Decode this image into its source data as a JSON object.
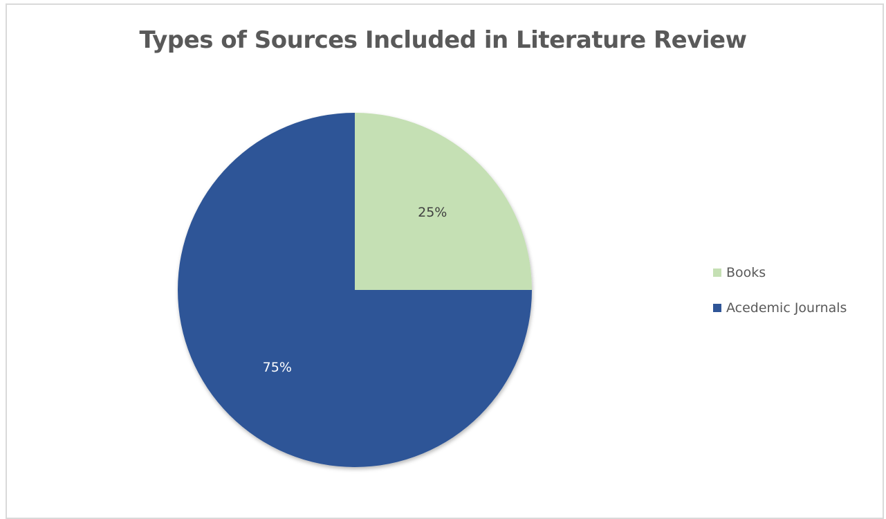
{
  "chart_data": {
    "type": "pie",
    "title": "Types of Sources Included in Literature Review",
    "slices": [
      {
        "label": "Books",
        "value": 25,
        "data_label": "25%",
        "color": "#c5e0b4",
        "label_color": "#404040"
      },
      {
        "label": "Acedemic Journals",
        "value": 75,
        "data_label": "75%",
        "color": "#2f5597",
        "label_color": "#ffffff"
      }
    ],
    "legend_position": "right",
    "start_angle": "12 o'clock",
    "direction": "clockwise"
  },
  "colors": {
    "title": "#595959",
    "legend_text": "#595959",
    "frame_border": "#d9d9d9"
  }
}
